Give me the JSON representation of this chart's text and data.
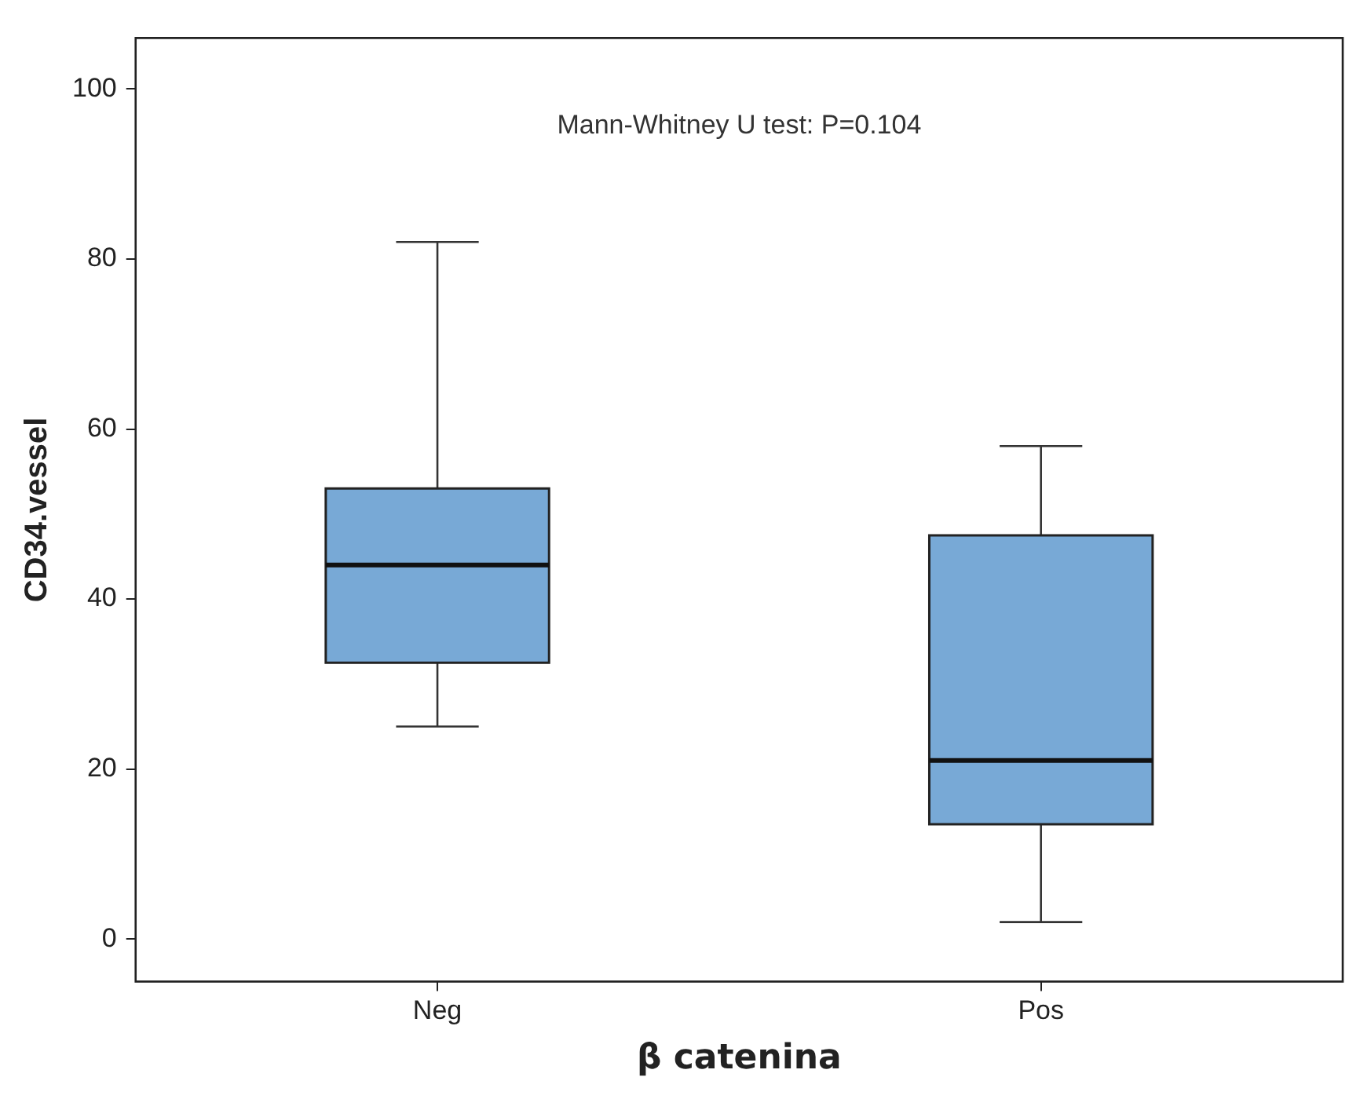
{
  "chart_data": {
    "type": "box",
    "xlabel": "β catenina",
    "ylabel": "CD34.vessel",
    "annotations": [
      "Mann-Whitney U test: P=0.104"
    ],
    "categories": [
      "Neg",
      "Pos"
    ],
    "color": "#78a9d6",
    "boxes": [
      {
        "low": 25,
        "q1": 32.5,
        "median": 44,
        "q3": 53,
        "high": 82
      },
      {
        "low": 2,
        "q1": 13.5,
        "median": 21,
        "q3": 47.5,
        "high": 58
      }
    ],
    "ylim": [
      -5,
      106
    ],
    "yticks": [
      0,
      20,
      40,
      60,
      80,
      100
    ],
    "grid": false,
    "legend": false
  }
}
